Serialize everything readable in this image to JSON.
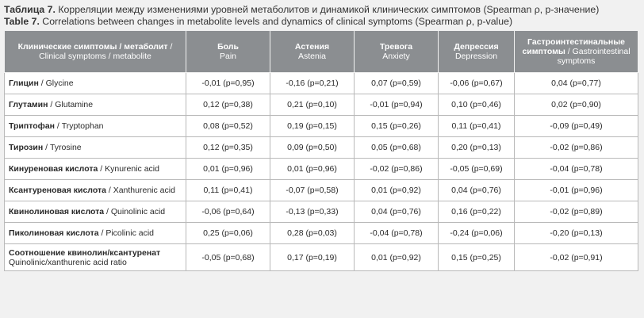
{
  "caption": {
    "ru_label": "Таблица 7.",
    "ru_text": " Корреляции между изменениями уровней метаболитов и динамикой клинических симптомов (Spearman ρ, p-значение)",
    "en_label": "Table 7.",
    "en_text": " Correlations between changes in metabolite levels and dynamics of clinical symptoms (Spearman ρ, p-value)"
  },
  "header": [
    {
      "ru": "Клинические симптомы / метаболит",
      "en": " / Clinical symptoms / metabolite"
    },
    {
      "ru": "Боль",
      "en": "Pain"
    },
    {
      "ru": "Астения",
      "en": "Astenia"
    },
    {
      "ru": "Тревога",
      "en": "Anxiety"
    },
    {
      "ru": "Депрессия",
      "en": "Depression"
    },
    {
      "ru": "Гастроинтестинальные симптомы",
      "en": " / Gastrointestinal symptoms"
    }
  ],
  "rows": [
    {
      "ru": "Глицин",
      "en": " / Glycine",
      "vals": [
        "-0,01 (p=0,95)",
        "-0,16 (p=0,21)",
        "0,07 (p=0,59)",
        "-0,06 (p=0,67)",
        "0,04 (p=0,77)"
      ]
    },
    {
      "ru": "Глутамин",
      "en": " / Glutamine",
      "vals": [
        "0,12 (p=0,38)",
        "0,21 (p=0,10)",
        "-0,01 (p=0,94)",
        "0,10 (p=0,46)",
        "0,02 (p=0,90)"
      ]
    },
    {
      "ru": "Триптофан",
      "en": " / Tryptophan",
      "vals": [
        "0,08 (p=0,52)",
        "0,19 (p=0,15)",
        "0,15 (p=0,26)",
        "0,11 (p=0,41)",
        "-0,09 (p=0,49)"
      ]
    },
    {
      "ru": "Тирозин",
      "en": " / Tyrosine",
      "vals": [
        "0,12 (p=0,35)",
        "0,09 (p=0,50)",
        "0,05 (p=0,68)",
        "0,20 (p=0,13)",
        "-0,02 (p=0,86)"
      ]
    },
    {
      "ru": "Кинуреновая кислота",
      "en": " / Kynurenic acid",
      "vals": [
        "0,01 (p=0,96)",
        "0,01 (p=0,96)",
        "-0,02 (p=0,86)",
        "-0,05 (p=0,69)",
        "-0,04 (p=0,78)"
      ]
    },
    {
      "ru": "Ксантуреновая кислота",
      "en": " / Xanthurenic acid",
      "vals": [
        "0,11 (p=0,41)",
        "-0,07 (p=0,58)",
        "0,01 (p=0,92)",
        "0,04 (p=0,76)",
        "-0,01 (p=0,96)"
      ]
    },
    {
      "ru": "Квинолиновая кислота",
      "en": " / Quinolinic acid",
      "vals": [
        "-0,06 (p=0,64)",
        "-0,13 (p=0,33)",
        "0,04 (p=0,76)",
        "0,16 (p=0,22)",
        "-0,02 (p=0,89)"
      ]
    },
    {
      "ru": "Пиколиновая кислота",
      "en": " / Picolinic acid",
      "vals": [
        "0,25 (p=0,06)",
        "0,28 (p=0,03)",
        "-0,04 (p=0,78)",
        "-0,24 (p=0,06)",
        "-0,20 (p=0,13)"
      ]
    },
    {
      "ru": "Соотношение квинолин/ксантуренат",
      "en": "Quinolinic/xanthurenic acid ratio",
      "vals": [
        "-0,05 (p=0,68)",
        "0,17 (p=0,19)",
        "0,01 (p=0,92)",
        "0,15 (p=0,25)",
        "-0,02 (p=0,91)"
      ]
    }
  ]
}
